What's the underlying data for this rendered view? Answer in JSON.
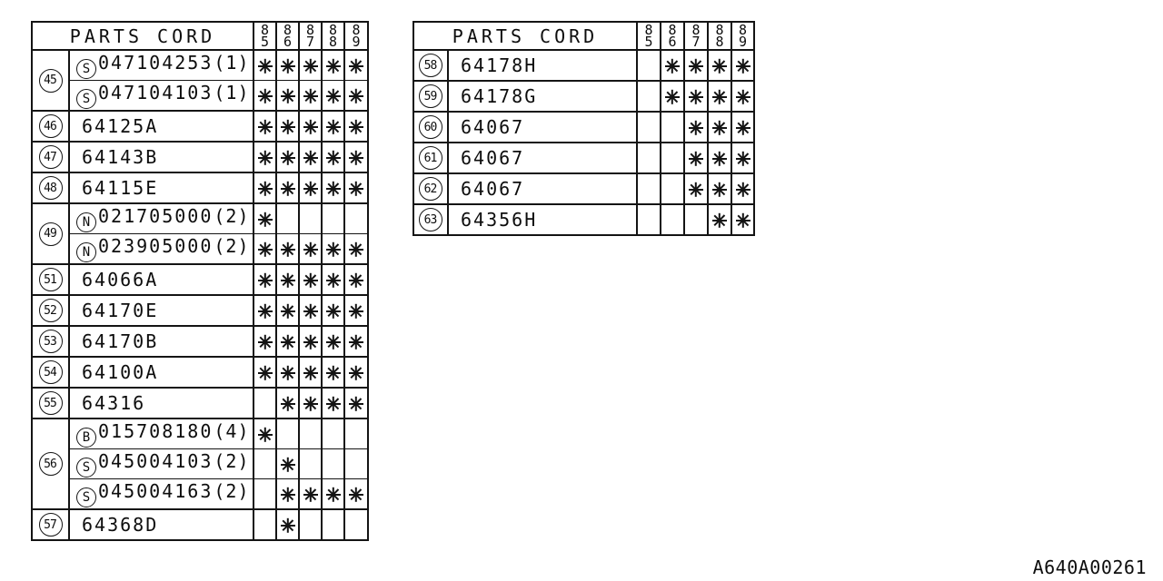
{
  "page": {
    "background": "#ffffff",
    "line_color": "#141414",
    "footer_code": "A640A00261"
  },
  "mark": {
    "icon": "eight-spoke-asterisk",
    "meaning": "applicable-model-year"
  },
  "tables": [
    {
      "id": "left",
      "header": "PARTS CORD",
      "years": [
        "85",
        "86",
        "87",
        "88",
        "89"
      ],
      "groups": [
        {
          "ref": "45",
          "rows": [
            {
              "prefix": "S",
              "code": "047104253",
              "qty": "(1)",
              "years": [
                1,
                1,
                1,
                1,
                1
              ]
            },
            {
              "prefix": "S",
              "code": "047104103",
              "qty": "(1)",
              "years": [
                1,
                1,
                1,
                1,
                1
              ]
            }
          ]
        },
        {
          "ref": "46",
          "rows": [
            {
              "code": "64125A",
              "years": [
                1,
                1,
                1,
                1,
                1
              ]
            }
          ]
        },
        {
          "ref": "47",
          "rows": [
            {
              "code": "64143B",
              "years": [
                1,
                1,
                1,
                1,
                1
              ]
            }
          ]
        },
        {
          "ref": "48",
          "rows": [
            {
              "code": "64115E",
              "years": [
                1,
                1,
                1,
                1,
                1
              ]
            }
          ]
        },
        {
          "ref": "49",
          "rows": [
            {
              "prefix": "N",
              "code": "021705000",
              "qty": "(2)",
              "years": [
                1,
                0,
                0,
                0,
                0
              ]
            },
            {
              "prefix": "N",
              "code": "023905000",
              "qty": "(2)",
              "years": [
                1,
                1,
                1,
                1,
                1
              ]
            }
          ]
        },
        {
          "ref": "51",
          "rows": [
            {
              "code": "64066A",
              "years": [
                1,
                1,
                1,
                1,
                1
              ]
            }
          ]
        },
        {
          "ref": "52",
          "rows": [
            {
              "code": "64170E",
              "years": [
                1,
                1,
                1,
                1,
                1
              ]
            }
          ]
        },
        {
          "ref": "53",
          "rows": [
            {
              "code": "64170B",
              "years": [
                1,
                1,
                1,
                1,
                1
              ]
            }
          ]
        },
        {
          "ref": "54",
          "rows": [
            {
              "code": "64100A",
              "years": [
                1,
                1,
                1,
                1,
                1
              ]
            }
          ]
        },
        {
          "ref": "55",
          "rows": [
            {
              "code": "64316",
              "years": [
                0,
                1,
                1,
                1,
                1
              ]
            }
          ]
        },
        {
          "ref": "56",
          "rows": [
            {
              "prefix": "B",
              "code": "015708180",
              "qty": "(4)",
              "years": [
                1,
                0,
                0,
                0,
                0
              ]
            },
            {
              "prefix": "S",
              "code": "045004103",
              "qty": "(2)",
              "years": [
                0,
                1,
                0,
                0,
                0
              ]
            },
            {
              "prefix": "S",
              "code": "045004163",
              "qty": "(2)",
              "years": [
                0,
                1,
                1,
                1,
                1
              ]
            }
          ]
        },
        {
          "ref": "57",
          "rows": [
            {
              "code": "64368D",
              "years": [
                0,
                1,
                0,
                0,
                0
              ]
            }
          ]
        }
      ]
    },
    {
      "id": "right",
      "header": "PARTS CORD",
      "years": [
        "85",
        "86",
        "87",
        "88",
        "89"
      ],
      "groups": [
        {
          "ref": "58",
          "rows": [
            {
              "code": "64178H",
              "years": [
                0,
                1,
                1,
                1,
                1
              ]
            }
          ]
        },
        {
          "ref": "59",
          "rows": [
            {
              "code": "64178G",
              "years": [
                0,
                1,
                1,
                1,
                1
              ]
            }
          ]
        },
        {
          "ref": "60",
          "rows": [
            {
              "code": "64067",
              "years": [
                0,
                0,
                1,
                1,
                1
              ]
            }
          ]
        },
        {
          "ref": "61",
          "rows": [
            {
              "code": "64067",
              "years": [
                0,
                0,
                1,
                1,
                1
              ]
            }
          ]
        },
        {
          "ref": "62",
          "rows": [
            {
              "code": "64067",
              "years": [
                0,
                0,
                1,
                1,
                1
              ]
            }
          ]
        },
        {
          "ref": "63",
          "rows": [
            {
              "code": "64356H",
              "years": [
                0,
                0,
                0,
                1,
                1
              ]
            }
          ]
        }
      ]
    }
  ]
}
